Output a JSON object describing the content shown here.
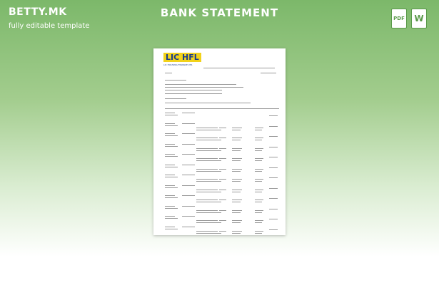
{
  "header": {
    "brand": "BETTY.MK",
    "tagline": "fully editable template",
    "title": "BANK STATEMENT"
  },
  "icons": {
    "pdf": "PDF",
    "word": "W"
  },
  "document": {
    "logo": "LIC HFL",
    "logo_subtitle": "LIC HOUSING FINANCE LTD."
  }
}
